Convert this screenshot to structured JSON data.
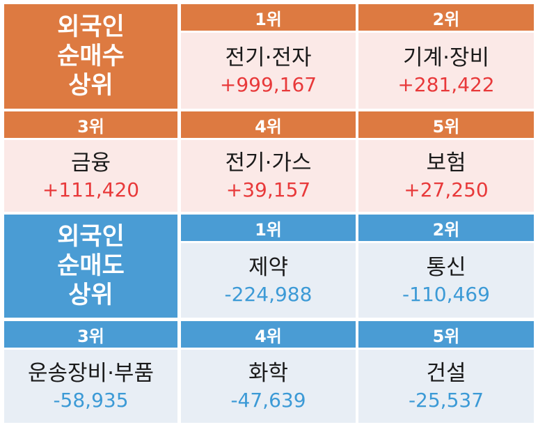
{
  "buy": {
    "title": [
      "외국인",
      "순매수",
      "상위"
    ],
    "items": [
      {
        "rank": "1위",
        "sector": "전기·전자",
        "value": "+999,167"
      },
      {
        "rank": "2위",
        "sector": "기계·장비",
        "value": "+281,422"
      },
      {
        "rank": "3위",
        "sector": "금융",
        "value": "+111,420"
      },
      {
        "rank": "4위",
        "sector": "전기·가스",
        "value": "+39,157"
      },
      {
        "rank": "5위",
        "sector": "보험",
        "value": "+27,250"
      }
    ]
  },
  "sell": {
    "title": [
      "외국인",
      "순매도",
      "상위"
    ],
    "items": [
      {
        "rank": "1위",
        "sector": "제약",
        "value": "-224,988"
      },
      {
        "rank": "2위",
        "sector": "통신",
        "value": "-110,469"
      },
      {
        "rank": "3위",
        "sector": "운송장비·부품",
        "value": "-58,935"
      },
      {
        "rank": "4위",
        "sector": "화학",
        "value": "-47,639"
      },
      {
        "rank": "5위",
        "sector": "건설",
        "value": "-25,537"
      }
    ]
  },
  "colors": {
    "buy_header": "#dd7a41",
    "buy_body": "#fbe9e7",
    "buy_value": "#e8393a",
    "sell_header": "#4a9cd4",
    "sell_body": "#e8eef5",
    "sell_value": "#3c9ad6"
  }
}
